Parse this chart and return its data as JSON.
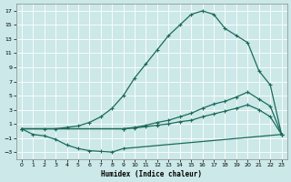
{
  "xlabel": "Humidex (Indice chaleur)",
  "background_color": "#cce8e8",
  "line_color": "#1a6b5a",
  "grid_color": "#ffffff",
  "xlim": [
    -0.5,
    23.5
  ],
  "ylim": [
    -4,
    18
  ],
  "xticks": [
    0,
    1,
    2,
    3,
    4,
    5,
    6,
    7,
    8,
    9,
    10,
    11,
    12,
    13,
    14,
    15,
    16,
    17,
    18,
    19,
    20,
    21,
    22,
    23
  ],
  "yticks": [
    -3,
    -1,
    1,
    3,
    5,
    7,
    9,
    11,
    13,
    15,
    17
  ],
  "curve_upper_x": [
    0,
    2,
    3,
    4,
    5,
    6,
    7,
    8,
    9,
    10,
    11,
    12,
    13,
    14,
    15,
    16,
    17,
    18,
    19,
    20,
    21,
    22,
    23
  ],
  "curve_upper_y": [
    0.3,
    0.3,
    0.3,
    0.5,
    0.7,
    1.2,
    2.0,
    3.2,
    5.0,
    7.5,
    9.5,
    11.5,
    13.5,
    15.0,
    16.5,
    17.0,
    16.5,
    14.5,
    13.5,
    12.5,
    8.5,
    6.5,
    -0.5
  ],
  "curve_dip_x": [
    0,
    1,
    2,
    3,
    4,
    5,
    6,
    7,
    8,
    9,
    23
  ],
  "curve_dip_y": [
    0.3,
    -0.5,
    -0.7,
    -1.2,
    -2.0,
    -2.5,
    -2.8,
    -2.9,
    -3.0,
    -2.5,
    -0.5
  ],
  "curve_mid1_x": [
    0,
    9,
    10,
    11,
    12,
    13,
    14,
    15,
    16,
    17,
    18,
    19,
    20,
    21,
    22,
    23
  ],
  "curve_mid1_y": [
    0.3,
    0.3,
    0.5,
    0.8,
    1.2,
    1.5,
    2.0,
    2.5,
    3.2,
    3.8,
    4.2,
    4.8,
    5.5,
    4.5,
    3.5,
    -0.5
  ],
  "curve_mid2_x": [
    0,
    9,
    10,
    11,
    12,
    13,
    14,
    15,
    16,
    17,
    18,
    19,
    20,
    21,
    22,
    23
  ],
  "curve_mid2_y": [
    0.3,
    0.3,
    0.4,
    0.6,
    0.8,
    1.0,
    1.3,
    1.5,
    2.0,
    2.4,
    2.8,
    3.2,
    3.7,
    3.0,
    2.0,
    -0.5
  ]
}
